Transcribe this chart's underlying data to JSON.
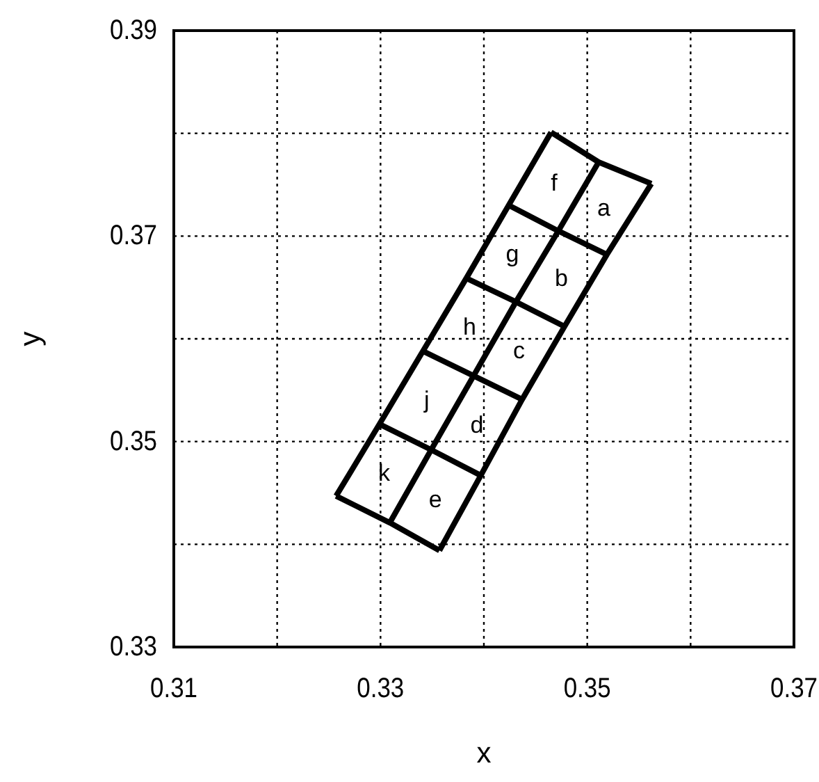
{
  "chart_data": {
    "type": "line",
    "xlabel": "x",
    "ylabel": "y",
    "xlim": [
      0.31,
      0.37
    ],
    "ylim": [
      0.33,
      0.39
    ],
    "xticks": [
      0.31,
      {
        "value": 0.32,
        "label": null
      },
      0.33,
      {
        "value": 0.34,
        "label": null
      },
      0.35,
      {
        "value": 0.36,
        "label": null
      },
      0.37
    ],
    "yticks": [
      0.33,
      {
        "value": 0.34,
        "label": null
      },
      0.35,
      {
        "value": 0.36,
        "label": null
      },
      0.37,
      {
        "value": 0.38,
        "label": null
      },
      0.39
    ],
    "grid": true,
    "line_style": "solid",
    "series": [
      {
        "color": "#000000",
        "x": [
          0.3465,
          0.3424,
          0.3383,
          0.3341,
          0.3299,
          0.3257
        ],
        "values": [
          0.3801,
          0.373,
          0.3659,
          0.3588,
          0.3517,
          0.3447
        ]
      },
      {
        "color": "#000000",
        "x": [
          0.3511,
          0.3472,
          0.3431,
          0.339,
          0.3349,
          0.3309
        ],
        "values": [
          0.3772,
          0.3705,
          0.3636,
          0.3564,
          0.3492,
          0.3421
        ]
      },
      {
        "color": "#000000",
        "x": [
          0.3562,
          0.3519,
          0.3478,
          0.3437,
          0.3397,
          0.3357
        ],
        "values": [
          0.3751,
          0.3682,
          0.3612,
          0.3541,
          0.3467,
          0.3394
        ]
      },
      {
        "color": "#000000",
        "x": [
          0.3465,
          0.3511,
          0.3562
        ],
        "values": [
          0.3801,
          0.3772,
          0.3751
        ]
      },
      {
        "color": "#000000",
        "x": [
          0.3424,
          0.3472,
          0.3519
        ],
        "values": [
          0.373,
          0.3705,
          0.3682
        ]
      },
      {
        "color": "#000000",
        "x": [
          0.3383,
          0.3431,
          0.3478
        ],
        "values": [
          0.3659,
          0.3636,
          0.3612
        ]
      },
      {
        "color": "#000000",
        "x": [
          0.3341,
          0.339,
          0.3437
        ],
        "values": [
          0.3588,
          0.3564,
          0.3541
        ]
      },
      {
        "color": "#000000",
        "x": [
          0.3299,
          0.3349,
          0.3397
        ],
        "values": [
          0.3517,
          0.3492,
          0.3467
        ]
      },
      {
        "color": "#000000",
        "x": [
          0.3257,
          0.3309,
          0.3357
        ],
        "values": [
          0.3447,
          0.3421,
          0.3394
        ]
      }
    ],
    "annotations": [
      "a",
      "b",
      "c",
      "d",
      "e",
      "f",
      "g",
      "h",
      "j",
      "k"
    ]
  }
}
